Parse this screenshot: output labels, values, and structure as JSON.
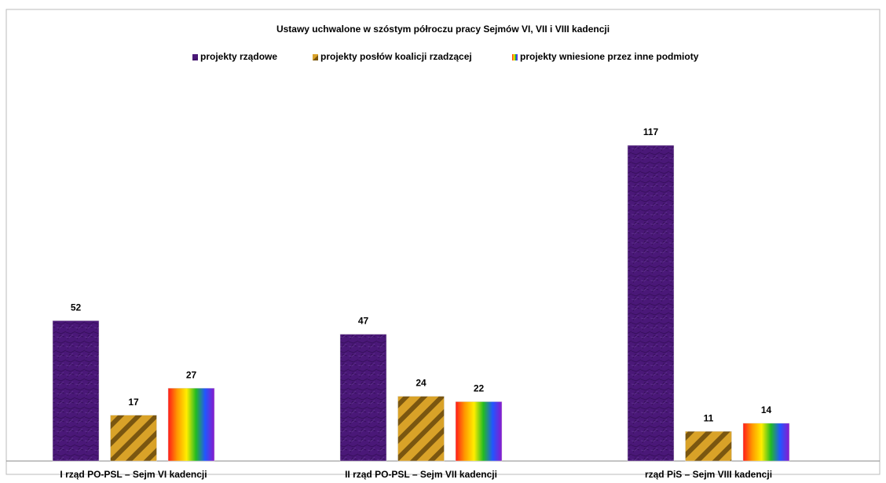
{
  "chart_data": {
    "type": "bar",
    "title": "Ustawy uchwalone w szóstym półroczu pracy Sejmów VI, VII i VIII kadencji",
    "categories": [
      "I rząd PO-PSL – Sejm VI kadencji",
      "II rząd PO-PSL – Sejm VII kadencji",
      "rząd PiS – Sejm VIII kadencji"
    ],
    "series": [
      {
        "name": "projekty rządowe",
        "color": "#4a1878",
        "values": [
          52,
          47,
          117
        ]
      },
      {
        "name": "projekty posłów koalicji rzadzącej",
        "color": "#d9a228",
        "values": [
          17,
          24,
          11
        ]
      },
      {
        "name": "projekty wniesione przez inne podmioty",
        "values": [
          27,
          22,
          14
        ]
      }
    ],
    "ylim": [
      0,
      140
    ]
  }
}
